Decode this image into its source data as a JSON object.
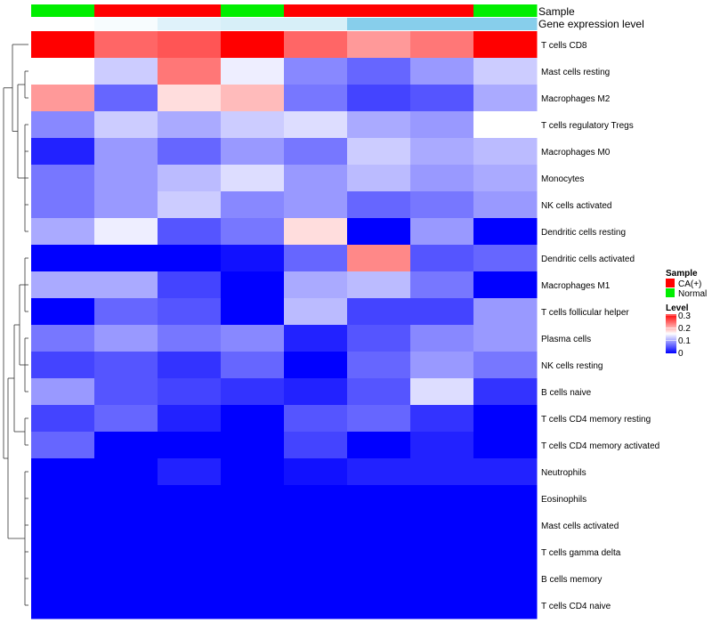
{
  "chart_data": {
    "type": "heatmap",
    "columns": 8,
    "rows": [
      "T cells CD8",
      "Mast cells resting",
      "Macrophages M2",
      "T cells regulatory  Tregs",
      "Macrophages M0",
      "Monocytes",
      "NK cells activated",
      "Dendritic cells resting",
      "Dendritic cells activated",
      "Macrophages M1",
      "T cells follicular helper",
      "Plasma cells",
      "NK cells resting",
      "B cells naive",
      "T cells CD4 memory resting",
      "T cells CD4 memory activated",
      "Neutrophils",
      "Eosinophils",
      "Mast cells activated",
      "T cells gamma delta",
      "B cells memory",
      "T cells CD4 naive"
    ],
    "values": [
      [
        0.3,
        0.24,
        0.25,
        0.3,
        0.24,
        0.21,
        0.23,
        0.3
      ],
      [
        0.15,
        0.12,
        0.23,
        0.14,
        0.08,
        0.06,
        0.09,
        0.12
      ],
      [
        0.21,
        0.06,
        0.17,
        0.19,
        0.07,
        0.04,
        0.05,
        0.1
      ],
      [
        0.08,
        0.12,
        0.1,
        0.12,
        0.13,
        0.1,
        0.09,
        0.15
      ],
      [
        0.02,
        0.09,
        0.06,
        0.09,
        0.07,
        0.12,
        0.1,
        0.11
      ],
      [
        0.07,
        0.09,
        0.11,
        0.13,
        0.09,
        0.11,
        0.09,
        0.1
      ],
      [
        0.07,
        0.09,
        0.12,
        0.08,
        0.09,
        0.06,
        0.07,
        0.09
      ],
      [
        0.1,
        0.14,
        0.05,
        0.07,
        0.17,
        0.0,
        0.09,
        0.0
      ],
      [
        0.0,
        0.0,
        0.0,
        0.01,
        0.06,
        0.22,
        0.05,
        0.06
      ],
      [
        0.1,
        0.1,
        0.04,
        0.0,
        0.1,
        0.11,
        0.07,
        0.0
      ],
      [
        0.0,
        0.06,
        0.05,
        0.0,
        0.11,
        0.04,
        0.04,
        0.09
      ],
      [
        0.07,
        0.09,
        0.07,
        0.08,
        0.02,
        0.05,
        0.08,
        0.09
      ],
      [
        0.04,
        0.05,
        0.03,
        0.06,
        0.0,
        0.06,
        0.09,
        0.07
      ],
      [
        0.09,
        0.05,
        0.04,
        0.03,
        0.02,
        0.05,
        0.13,
        0.03
      ],
      [
        0.04,
        0.06,
        0.02,
        0.0,
        0.05,
        0.06,
        0.03,
        0.0
      ],
      [
        0.06,
        0.0,
        0.0,
        0.0,
        0.04,
        0.0,
        0.02,
        0.0
      ],
      [
        0.0,
        0.0,
        0.02,
        0.0,
        0.01,
        0.02,
        0.02,
        0.02
      ],
      [
        0.0,
        0.0,
        0.0,
        0.0,
        0.0,
        0.0,
        0.0,
        0.0
      ],
      [
        0.0,
        0.0,
        0.0,
        0.0,
        0.0,
        0.0,
        0.0,
        0.0
      ],
      [
        0.0,
        0.0,
        0.0,
        0.0,
        0.0,
        0.0,
        0.0,
        0.0
      ],
      [
        0.0,
        0.0,
        0.0,
        0.0,
        0.0,
        0.0,
        0.0,
        0.0
      ],
      [
        0.0,
        0.0,
        0.0,
        0.0,
        0.0,
        0.0,
        0.0,
        0.0
      ]
    ],
    "annotations": {
      "sample": {
        "label": "Sample",
        "values": [
          "Normal",
          "CA(+)",
          "CA(+)",
          "Normal",
          "CA(+)",
          "CA(+)",
          "CA(+)",
          "Normal"
        ],
        "colors": {
          "CA(+)": "#FF0000",
          "Normal": "#00EE00"
        }
      },
      "gene_expression": {
        "label": "Gene expression level",
        "values": [
          0.0,
          0.02,
          0.08,
          0.1,
          0.1,
          0.3,
          0.3,
          0.3
        ],
        "low_color": "#FFFFFF",
        "high_color": "#87CEEB"
      }
    },
    "color_scale": {
      "low": "#0000FF",
      "mid": "#FFFFFF",
      "high": "#FF0000",
      "min": 0,
      "mid_value": 0.15,
      "max": 0.3
    },
    "legend": {
      "sample_title": "Sample",
      "sample_entries": [
        {
          "label": "CA(+)",
          "color": "#FF0000"
        },
        {
          "label": "Normal",
          "color": "#00EE00"
        }
      ],
      "level_title": "Level",
      "level_ticks": [
        "0.3",
        "0.2",
        "0.1",
        "0"
      ],
      "placement": "right"
    },
    "row_dendrogram": {
      "groups": [
        [
          0
        ],
        [
          1,
          2
        ],
        [
          3,
          4,
          5,
          6,
          7
        ],
        [
          8,
          9,
          10
        ],
        [
          11,
          12,
          13
        ],
        [
          14,
          15
        ],
        [
          16,
          17,
          18,
          19,
          20,
          21
        ]
      ]
    }
  }
}
